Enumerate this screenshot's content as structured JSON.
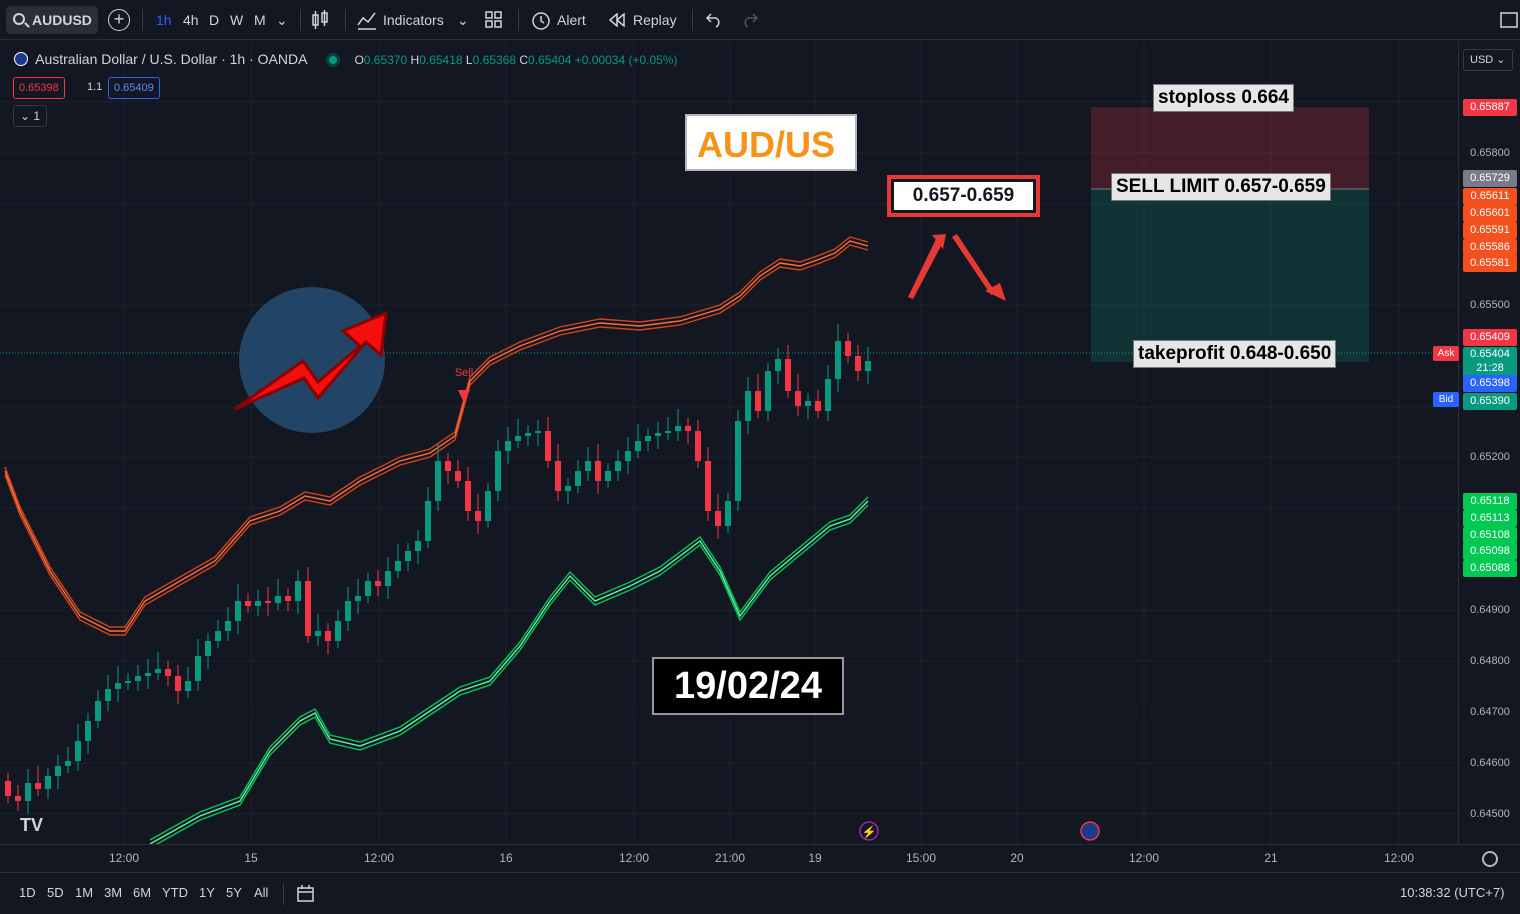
{
  "toolbar": {
    "symbol": "AUDUSD",
    "intervals": [
      "1h",
      "4h",
      "D",
      "W",
      "M"
    ],
    "indicators_label": "Indicators",
    "alert_label": "Alert",
    "replay_label": "Replay"
  },
  "legend": {
    "title": "Australian Dollar / U.S. Dollar · 1h · OANDA",
    "o_label": "O",
    "o": "0.65370",
    "h_label": "H",
    "h": "0.65418",
    "l_label": "L",
    "l": "0.65368",
    "c_label": "C",
    "c": "0.65404",
    "change": "+0.00034 (+0.05%)",
    "sell_price": "0.65398",
    "spread": "1.1",
    "buy_price": "0.65409",
    "collapse_count": "1"
  },
  "annotations": {
    "title": "AUD/US",
    "entry_zone": "0.657-0.659",
    "date": "19/02/24",
    "stoploss": "stoploss 0.664",
    "sell_limit": "SELL LIMIT 0.657-0.659",
    "takeprofit": "takeprofit 0.648-0.650",
    "sell_signal": "Sell"
  },
  "price_scale": {
    "currency": "USD",
    "ticks": [
      "0.65800",
      "0.65500",
      "0.65200",
      "0.64900",
      "0.64800",
      "0.64700",
      "0.64600",
      "0.64500"
    ],
    "markers": [
      {
        "value": "0.65887",
        "color": "#f23645"
      },
      {
        "value": "0.65729",
        "color": "#787b86"
      },
      {
        "value": "0.65611",
        "color": "#f4511e"
      },
      {
        "value": "0.65601",
        "color": "#f4511e"
      },
      {
        "value": "0.65591",
        "color": "#f4511e"
      },
      {
        "value": "0.65586",
        "color": "#f4511e"
      },
      {
        "value": "0.65581",
        "color": "#f4511e"
      },
      {
        "value": "0.65409",
        "color": "#f23645",
        "tag": "Ask"
      },
      {
        "value": "0.65404",
        "color": "#089981",
        "sub": "21:28"
      },
      {
        "value": "0.65398",
        "color": "#2962ff",
        "tag": "Bid"
      },
      {
        "value": "0.65390",
        "color": "#089981"
      },
      {
        "value": "0.65118",
        "color": "#00c853"
      },
      {
        "value": "0.65113",
        "color": "#00c853"
      },
      {
        "value": "0.65108",
        "color": "#00c853"
      },
      {
        "value": "0.65098",
        "color": "#00c853"
      },
      {
        "value": "0.65088",
        "color": "#00c853"
      }
    ]
  },
  "time_scale": [
    "12:00",
    "15",
    "12:00",
    "16",
    "12:00",
    "21:00",
    "19",
    "15:00",
    "20",
    "12:00",
    "21",
    "12:00"
  ],
  "bottom_bar": {
    "ranges": [
      "1D",
      "5D",
      "1M",
      "3M",
      "6M",
      "YTD",
      "1Y",
      "5Y",
      "All"
    ],
    "clock": "10:38:32 (UTC+7)"
  },
  "colors": {
    "bullish": "#089981",
    "bearish": "#f23645",
    "upper_band": "#ff5722",
    "lower_band": "#00e676",
    "accent": "#2962ff"
  }
}
